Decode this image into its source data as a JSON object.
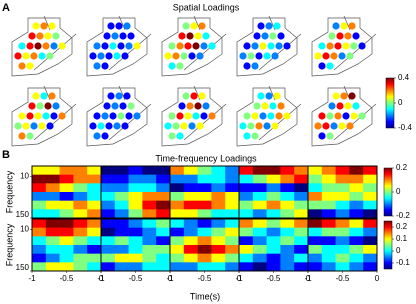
{
  "chart_data": [
    {
      "type": "spatial",
      "panel_label": "A",
      "title": "Spatial Loadings",
      "clim": [
        -0.4,
        0.4
      ],
      "cticks": [
        -0.4,
        0,
        0.4
      ],
      "panels": [
        [
          0.1,
          0.2,
          0.1,
          0.3,
          0.2,
          0.1,
          0,
          -0.1,
          0.3,
          0.4,
          0.2,
          -0.2,
          0.1,
          0.3,
          0.1,
          0.2,
          -0.1,
          0,
          0.2,
          0.1
        ],
        [
          -0.3,
          -0.3,
          -0.2,
          -0.3,
          -0.2,
          -0.3,
          -0.3,
          -0.2,
          -0.3,
          -0.1,
          -0.3,
          -0.2,
          0.1,
          -0.3,
          -0.2,
          -0.3,
          -0.1,
          -0.3,
          -0.2,
          -0.3
        ],
        [
          0,
          0.1,
          0.2,
          0.3,
          0.4,
          0.1,
          -0.1,
          0,
          0.2,
          0.3,
          0.4,
          -0.2,
          -0.1,
          0.1,
          0.2,
          0,
          -0.3,
          -0.2,
          -0.1,
          0
        ],
        [
          -0.3,
          -0.2,
          -0.1,
          -0.3,
          -0.2,
          0,
          -0.3,
          -0.3,
          -0.2,
          0.1,
          -0.1,
          -0.2,
          -0.3,
          -0.2,
          0,
          -0.3,
          -0.1,
          -0.2,
          -0.3,
          -0.2
        ],
        [
          -0.2,
          0.1,
          0.2,
          0,
          0.3,
          0.2,
          -0.3,
          -0.1,
          0.2,
          0.3,
          0.1,
          0,
          -0.3,
          0.1,
          0.3,
          0.2,
          -0.2,
          0,
          -0.3,
          -0.1
        ],
        [
          0.1,
          -0.1,
          0.2,
          0.3,
          0,
          0.4,
          -0.2,
          0.1,
          0.3,
          0.1,
          -0.1,
          -0.3,
          0.2,
          0,
          0.1,
          -0.2,
          0.1,
          -0.3,
          0.2,
          0
        ],
        [
          -0.3,
          -0.2,
          -0.3,
          -0.3,
          -0.2,
          -0.3,
          0,
          -0.3,
          -0.2,
          -0.3,
          0,
          -0.3,
          -0.2,
          -0.3,
          -0.1,
          -0.3,
          -0.2,
          -0.3,
          -0.2,
          -0.3
        ],
        [
          0,
          0.3,
          0.1,
          -0.3,
          0.2,
          0.4,
          -0.2,
          0,
          0.3,
          0.1,
          -0.1,
          -0.3,
          0.2,
          -0.1,
          0,
          0.1,
          -0.2,
          0.1,
          0,
          -0.1
        ],
        [
          -0.1,
          -0.2,
          0.1,
          0,
          0.1,
          -0.1,
          0.2,
          0,
          0.1,
          -0.2,
          -0.1,
          0.2,
          0.1,
          -0.1,
          0,
          0.2,
          -0.2,
          0.1,
          -0.1,
          0
        ],
        [
          0.1,
          0.2,
          0.4,
          -0.2,
          0.3,
          0.1,
          -0.1,
          0.3,
          0,
          0.2,
          -0.3,
          0.1,
          0,
          0.2,
          0.3,
          -0.2,
          0.1,
          0.2,
          -0.3,
          0
        ]
      ]
    },
    {
      "type": "heatmap",
      "panel_label": "B",
      "title": "Time-frequency Loadings",
      "x_label": "Time(s)",
      "y_label": "Frequency",
      "xlim": [
        -1,
        0
      ],
      "xticks": [
        -1,
        -0.5,
        0
      ],
      "ylim": [
        5,
        150
      ],
      "yticks": [
        10,
        150
      ],
      "log_y": true,
      "rows": [
        {
          "clim": [
            -0.2,
            0.2
          ],
          "cticks": [
            -0.2,
            0,
            0.2
          ],
          "panels": [
            [
              [
                0.05,
                0.05,
                0.1,
                0.1,
                0.05
              ],
              [
                0.2,
                0.2,
                0.15,
                0.1,
                0.1
              ],
              [
                0.15,
                0.1,
                0.05,
                0,
                -0.05
              ],
              [
                -0.1,
                -0.1,
                -0.15,
                -0.1,
                -0.05
              ],
              [
                0,
                0.05,
                0.05,
                0.1,
                0.05
              ],
              [
                -0.05,
                -0.05,
                0,
                0.05,
                0.1
              ]
            ],
            [
              [
                -0.2,
                -0.2,
                -0.15,
                -0.2,
                -0.2
              ],
              [
                -0.15,
                -0.15,
                -0.1,
                -0.1,
                -0.15
              ],
              [
                -0.1,
                -0.1,
                -0.05,
                -0.05,
                -0.1
              ],
              [
                -0.05,
                0,
                0.05,
                0.1,
                0.1
              ],
              [
                -0.1,
                -0.05,
                0.05,
                0.15,
                0.2
              ],
              [
                -0.15,
                -0.1,
                0,
                0.1,
                0.15
              ]
            ],
            [
              [
                0.1,
                0.05,
                0,
                -0.05,
                -0.1
              ],
              [
                -0.1,
                -0.1,
                -0.05,
                -0.05,
                -0.1
              ],
              [
                -0.2,
                -0.15,
                -0.15,
                -0.1,
                -0.15
              ],
              [
                0,
                0.05,
                0.05,
                0.1,
                0.05
              ],
              [
                0.1,
                0.15,
                0.15,
                0.1,
                0.05
              ],
              [
                0.05,
                0.05,
                0,
                -0.05,
                -0.05
              ]
            ],
            [
              [
                0.15,
                0.2,
                0.2,
                0.15,
                0.1
              ],
              [
                -0.05,
                0,
                0.05,
                0.1,
                0.15
              ],
              [
                -0.15,
                -0.15,
                -0.1,
                -0.15,
                -0.2
              ],
              [
                -0.1,
                -0.05,
                0,
                -0.05,
                -0.1
              ],
              [
                0,
                0.05,
                0.1,
                0.05,
                0
              ],
              [
                -0.05,
                -0.1,
                -0.05,
                0,
                0.05
              ]
            ],
            [
              [
                0.05,
                0.1,
                0.15,
                0.2,
                0.15
              ],
              [
                0,
                0.05,
                0.1,
                0.1,
                0.05
              ],
              [
                -0.05,
                0,
                0,
                0.05,
                0
              ],
              [
                0.1,
                0.05,
                0.05,
                0,
                0.05
              ],
              [
                0,
                0,
                -0.05,
                -0.1,
                -0.05
              ],
              [
                -0.2,
                -0.15,
                -0.1,
                -0.15,
                -0.2
              ]
            ]
          ]
        },
        {
          "clim": [
            -0.15,
            0.25
          ],
          "cticks": [
            -0.1,
            0,
            0.1,
            0.2
          ],
          "panels": [
            [
              [
                0.2,
                0.25,
                0.25,
                0.2,
                0.15
              ],
              [
                0.15,
                0.2,
                0.2,
                0.15,
                0.1
              ],
              [
                0,
                0.05,
                0.1,
                0.05,
                0
              ],
              [
                -0.05,
                0,
                0,
                -0.05,
                -0.1
              ],
              [
                -0.1,
                -0.05,
                0,
                0.05,
                0.05
              ],
              [
                0.05,
                0.1,
                0.1,
                0.05,
                0
              ]
            ],
            [
              [
                -0.1,
                -0.1,
                -0.05,
                0,
                0.05
              ],
              [
                -0.15,
                -0.1,
                -0.1,
                -0.05,
                0
              ],
              [
                0,
                0.05,
                0,
                -0.05,
                -0.1
              ],
              [
                -0.05,
                -0.05,
                0,
                0.05,
                0.05
              ],
              [
                0.05,
                0.1,
                0.1,
                0.05,
                0
              ],
              [
                -0.1,
                -0.05,
                -0.05,
                0,
                0
              ]
            ],
            [
              [
                0,
                -0.05,
                -0.1,
                -0.05,
                0
              ],
              [
                -0.1,
                -0.05,
                0,
                0.05,
                0.1
              ],
              [
                0.05,
                0.1,
                0.15,
                0.1,
                0.05
              ],
              [
                0.1,
                0.2,
                0.25,
                0.2,
                0.15
              ],
              [
                0.05,
                0.1,
                0.15,
                0.1,
                0.05
              ],
              [
                -0.05,
                -0.05,
                0,
                0,
                -0.05
              ]
            ],
            [
              [
                0.15,
                0.1,
                0.05,
                0.1,
                0.15
              ],
              [
                0.05,
                0,
                -0.05,
                0,
                0.05
              ],
              [
                -0.1,
                -0.05,
                0,
                0.05,
                0
              ],
              [
                0.1,
                0.05,
                0,
                -0.05,
                -0.1
              ],
              [
                0,
                -0.05,
                -0.1,
                -0.05,
                0
              ],
              [
                -0.1,
                -0.15,
                -0.1,
                -0.05,
                -0.1
              ]
            ],
            [
              [
                0.25,
                0.2,
                0.15,
                0.1,
                0.2
              ],
              [
                0,
                0.05,
                0.05,
                0,
                -0.05
              ],
              [
                -0.1,
                -0.1,
                -0.05,
                -0.1,
                -0.15
              ],
              [
                0.05,
                0,
                0,
                0.05,
                0.1
              ],
              [
                -0.05,
                0,
                0.05,
                0,
                -0.05
              ],
              [
                -0.1,
                -0.05,
                0,
                -0.05,
                -0.1
              ]
            ]
          ]
        }
      ]
    }
  ]
}
